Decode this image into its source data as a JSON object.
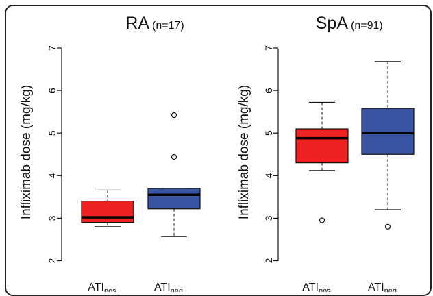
{
  "chart_data": [
    {
      "type": "box",
      "title": "RA",
      "subtitle": "(n=17)",
      "ylabel": "Infliximab dose (mg/kg)",
      "ylim": [
        1.8,
        7.3
      ],
      "yticks": [
        "2",
        "3",
        "4",
        "5",
        "6",
        "7"
      ],
      "categories": [
        {
          "base": "ATI",
          "sub": "pos"
        },
        {
          "base": "ATI",
          "sub": "neg"
        }
      ],
      "boxes": [
        {
          "whisker_low": 2.8,
          "q1": 2.9,
          "median": 3.02,
          "q3": 3.4,
          "whisker_high": 3.66,
          "outliers": [],
          "color": "#ee2222"
        },
        {
          "whisker_low": 2.57,
          "q1": 3.22,
          "median": 3.55,
          "q3": 3.7,
          "whisker_high": 3.7,
          "outliers": [
            4.44,
            5.42
          ],
          "color": "#3a54a4"
        }
      ]
    },
    {
      "type": "box",
      "title": "SpA",
      "subtitle": "(n=91)",
      "ylabel": "Infliximab dose (mg/kg)",
      "ylim": [
        1.8,
        7.3
      ],
      "yticks": [
        "2",
        "3",
        "4",
        "5",
        "6",
        "7"
      ],
      "categories": [
        {
          "base": "ATI",
          "sub": "pos"
        },
        {
          "base": "ATI",
          "sub": "neg"
        }
      ],
      "boxes": [
        {
          "whisker_low": 4.12,
          "q1": 4.3,
          "median": 4.88,
          "q3": 5.1,
          "whisker_high": 5.72,
          "outliers": [
            2.95
          ],
          "color": "#ee2222"
        },
        {
          "whisker_low": 3.2,
          "q1": 4.5,
          "median": 5.0,
          "q3": 5.58,
          "whisker_high": 6.68,
          "outliers": [
            2.8
          ],
          "color": "#3a54a4"
        }
      ]
    }
  ]
}
